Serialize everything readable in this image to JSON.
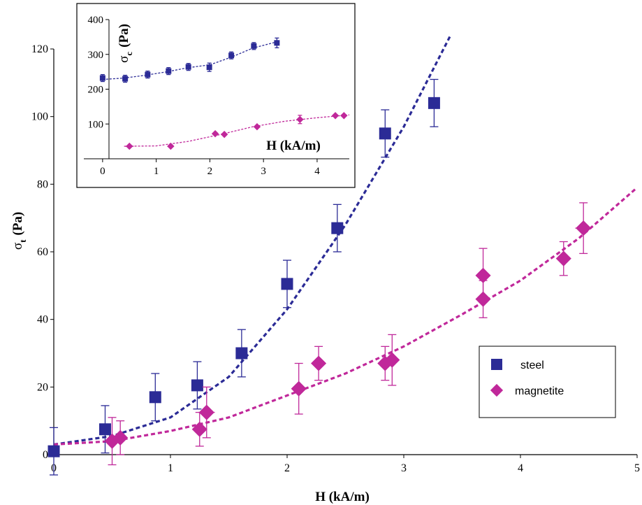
{
  "colors": {
    "steel": "#2b2b96",
    "magnetite": "#c0289a",
    "axis": "#000000"
  },
  "chart_data": [
    {
      "type": "scatter",
      "xlabel": "H (kA/m)",
      "ylabel_main": "σ",
      "ylabel_sub": "t",
      "ylabel_unit": "(Pa)",
      "xlim": [
        0,
        5
      ],
      "ylim": [
        0,
        120
      ],
      "xticks": [
        "0",
        "1",
        "2",
        "3",
        "4",
        "5"
      ],
      "yticks": [
        "0",
        "20",
        "40",
        "60",
        "80",
        "100",
        "120"
      ],
      "legend_position": "right-middle",
      "series": [
        {
          "name": "steel",
          "marker": "square",
          "color": "steel",
          "x": [
            0,
            0.44,
            0.87,
            1.23,
            1.61,
            2.0,
            2.43,
            2.84,
            3.26
          ],
          "y": [
            1,
            7.5,
            17,
            20.5,
            30,
            50.5,
            67,
            95,
            104
          ],
          "yerr": [
            7,
            7,
            7,
            7,
            7,
            7,
            7,
            7,
            7
          ],
          "xerr": [
            0,
            0,
            0,
            0,
            0,
            0,
            0,
            0,
            0
          ],
          "fit": {
            "x": [
              0,
              0.5,
              1,
              1.5,
              2,
              2.5,
              3,
              3.4
            ],
            "y": [
              3,
              5.5,
              11,
              23,
              43,
              68,
              97,
              124
            ]
          }
        },
        {
          "name": "magnetite",
          "marker": "diamond",
          "color": "magnetite",
          "x": [
            0.5,
            0.57,
            1.25,
            1.31,
            2.1,
            2.27,
            2.84,
            2.9,
            3.68,
            3.68,
            4.37,
            4.54
          ],
          "y": [
            4,
            5,
            7.5,
            12.5,
            19.5,
            27,
            27,
            28,
            53,
            46,
            58,
            67
          ],
          "yerr": [
            7,
            5,
            5,
            7.5,
            7.5,
            5,
            5,
            7.5,
            8,
            5.5,
            5,
            7.5
          ],
          "xerr": [
            0,
            0,
            0,
            0.07,
            0.06,
            0,
            0,
            0.06,
            0,
            0,
            0,
            0.07
          ],
          "fit": {
            "x": [
              0,
              0.5,
              1,
              1.5,
              2,
              2.5,
              3,
              3.5,
              4,
              4.5,
              5
            ],
            "y": [
              3,
              4,
              7,
              11,
              17.5,
              24,
              32,
              41.5,
              51.5,
              64,
              79
            ]
          }
        }
      ]
    },
    {
      "type": "scatter",
      "xlabel": "H (kA/m)",
      "ylabel_main": "σ",
      "ylabel_sub": "c",
      "ylabel_unit": "(Pa)",
      "xlim": [
        -0.35,
        4.6
      ],
      "ylim": [
        0,
        400
      ],
      "xticks": [
        "0",
        "1",
        "2",
        "3",
        "4"
      ],
      "yticks": [
        "100",
        "200",
        "300",
        "400"
      ],
      "series": [
        {
          "name": "steel",
          "marker": "square",
          "color": "steel",
          "x": [
            0,
            0.42,
            0.84,
            1.23,
            1.6,
            1.99,
            2.4,
            2.82,
            3.25
          ],
          "y": [
            232,
            230,
            242,
            252,
            264,
            263,
            297,
            324,
            333
          ],
          "yerr": [
            10,
            10,
            10,
            10,
            10,
            12,
            10,
            10,
            14
          ],
          "fit": {
            "x": [
              0,
              0.4,
              0.8,
              1.2,
              1.6,
              2.0,
              2.4,
              2.8,
              3.25
            ],
            "y": [
              228,
              232,
              240,
              250,
              262,
              270,
              292,
              318,
              336
            ]
          }
        },
        {
          "name": "magnetite",
          "marker": "diamond",
          "color": "magnetite",
          "x": [
            0.5,
            1.27,
            2.1,
            2.27,
            2.88,
            3.68,
            4.34,
            4.5
          ],
          "y": [
            36,
            36,
            72,
            70,
            92,
            113,
            124,
            124
          ],
          "yerr": [
            0,
            0,
            0,
            0,
            0,
            12,
            0,
            0
          ],
          "xerr": [
            0.08,
            0.06,
            0.05,
            0,
            0,
            0,
            0,
            0.05
          ],
          "fit": {
            "x": [
              0.4,
              1.0,
              1.6,
              2.2,
              2.8,
              3.4,
              4.0,
              4.6
            ],
            "y": [
              36,
              37,
              50,
              70,
              92,
              108,
              118,
              126
            ]
          }
        }
      ]
    }
  ]
}
